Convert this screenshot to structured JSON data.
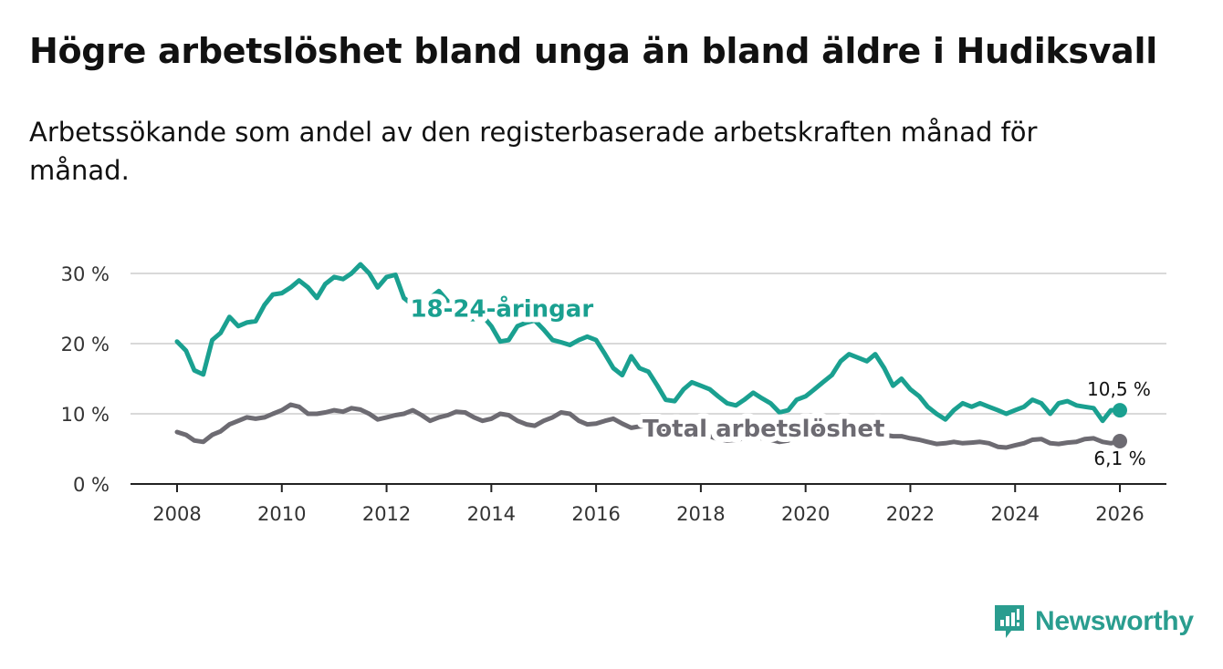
{
  "title": "Högre arbetslöshet bland unga än bland äldre i Hudiksvall",
  "subtitle": "Arbetssökande som andel av den registerbaserade arbetskraften månad för månad.",
  "brand": "Newsworthy",
  "colors": {
    "youth": "#1aa090",
    "total": "#6d6b72",
    "grid": "#d9d9d9",
    "axis": "#222222",
    "brand": "#2a9d8f"
  },
  "chart_data": {
    "type": "line",
    "title": "Högre arbetslöshet bland unga än bland äldre i Hudiksvall",
    "subtitle": "Arbetssökande som andel av den registerbaserade arbetskraften månad för månad.",
    "xlabel": "",
    "ylabel": "",
    "xlim": [
      2007.75,
      2026.9
    ],
    "ylim": [
      0,
      30
    ],
    "grid": true,
    "x_ticks": [
      2008,
      2010,
      2012,
      2014,
      2016,
      2018,
      2020,
      2022,
      2024,
      2026
    ],
    "x_tick_labels": [
      "2008",
      "2010",
      "2012",
      "2014",
      "2016",
      "2018",
      "2020",
      "2022",
      "2024",
      "2026"
    ],
    "y_ticks": [
      0,
      10,
      20,
      30
    ],
    "y_tick_labels": [
      "0 %",
      "10 %",
      "20 %",
      "30 %"
    ],
    "series": [
      {
        "name": "18-24-åringar",
        "label": "18-24-åringar",
        "end_label": "10,5 %",
        "color": "#1aa090",
        "points": [
          [
            2008.0,
            20.3
          ],
          [
            2008.17,
            19.0
          ],
          [
            2008.33,
            16.2
          ],
          [
            2008.5,
            15.6
          ],
          [
            2008.67,
            20.5
          ],
          [
            2008.83,
            21.5
          ],
          [
            2009.0,
            23.8
          ],
          [
            2009.17,
            22.5
          ],
          [
            2009.33,
            23.0
          ],
          [
            2009.5,
            23.2
          ],
          [
            2009.67,
            25.5
          ],
          [
            2009.83,
            27.0
          ],
          [
            2010.0,
            27.2
          ],
          [
            2010.17,
            28.0
          ],
          [
            2010.33,
            29.0
          ],
          [
            2010.5,
            28.0
          ],
          [
            2010.67,
            26.5
          ],
          [
            2010.83,
            28.5
          ],
          [
            2011.0,
            29.5
          ],
          [
            2011.17,
            29.2
          ],
          [
            2011.33,
            30.0
          ],
          [
            2011.5,
            31.3
          ],
          [
            2011.67,
            30.0
          ],
          [
            2011.83,
            28.0
          ],
          [
            2012.0,
            29.5
          ],
          [
            2012.17,
            29.8
          ],
          [
            2012.33,
            26.5
          ],
          [
            2012.5,
            25.5
          ],
          [
            2012.67,
            25.0
          ],
          [
            2012.83,
            26.5
          ],
          [
            2013.0,
            27.5
          ],
          [
            2013.17,
            26.0
          ],
          [
            2013.33,
            24.5
          ],
          [
            2013.5,
            23.5
          ],
          [
            2013.67,
            23.5
          ],
          [
            2013.83,
            24.0
          ],
          [
            2014.0,
            22.5
          ],
          [
            2014.17,
            20.3
          ],
          [
            2014.33,
            20.5
          ],
          [
            2014.5,
            22.5
          ],
          [
            2014.67,
            23.0
          ],
          [
            2014.83,
            23.3
          ],
          [
            2015.0,
            22.0
          ],
          [
            2015.17,
            20.5
          ],
          [
            2015.33,
            20.2
          ],
          [
            2015.5,
            19.8
          ],
          [
            2015.67,
            20.5
          ],
          [
            2015.83,
            21.0
          ],
          [
            2016.0,
            20.5
          ],
          [
            2016.17,
            18.5
          ],
          [
            2016.33,
            16.5
          ],
          [
            2016.5,
            15.5
          ],
          [
            2016.67,
            18.2
          ],
          [
            2016.83,
            16.5
          ],
          [
            2017.0,
            16.0
          ],
          [
            2017.17,
            14.0
          ],
          [
            2017.33,
            12.0
          ],
          [
            2017.5,
            11.8
          ],
          [
            2017.67,
            13.5
          ],
          [
            2017.83,
            14.5
          ],
          [
            2018.0,
            14.0
          ],
          [
            2018.17,
            13.5
          ],
          [
            2018.33,
            12.5
          ],
          [
            2018.5,
            11.5
          ],
          [
            2018.67,
            11.2
          ],
          [
            2018.83,
            12.0
          ],
          [
            2019.0,
            13.0
          ],
          [
            2019.17,
            12.2
          ],
          [
            2019.33,
            11.5
          ],
          [
            2019.5,
            10.2
          ],
          [
            2019.67,
            10.5
          ],
          [
            2019.83,
            12.0
          ],
          [
            2020.0,
            12.5
          ],
          [
            2020.17,
            13.5
          ],
          [
            2020.33,
            14.5
          ],
          [
            2020.5,
            15.5
          ],
          [
            2020.67,
            17.5
          ],
          [
            2020.83,
            18.5
          ],
          [
            2021.0,
            18.0
          ],
          [
            2021.17,
            17.5
          ],
          [
            2021.33,
            18.5
          ],
          [
            2021.5,
            16.5
          ],
          [
            2021.67,
            14.0
          ],
          [
            2021.83,
            15.0
          ],
          [
            2022.0,
            13.5
          ],
          [
            2022.17,
            12.5
          ],
          [
            2022.33,
            11.0
          ],
          [
            2022.5,
            10.0
          ],
          [
            2022.67,
            9.2
          ],
          [
            2022.83,
            10.5
          ],
          [
            2023.0,
            11.5
          ],
          [
            2023.17,
            11.0
          ],
          [
            2023.33,
            11.5
          ],
          [
            2023.5,
            11.0
          ],
          [
            2023.67,
            10.5
          ],
          [
            2023.83,
            10.0
          ],
          [
            2024.0,
            10.5
          ],
          [
            2024.17,
            11.0
          ],
          [
            2024.33,
            12.0
          ],
          [
            2024.5,
            11.5
          ],
          [
            2024.67,
            10.0
          ],
          [
            2024.83,
            11.5
          ],
          [
            2025.0,
            11.8
          ],
          [
            2025.17,
            11.2
          ],
          [
            2025.33,
            11.0
          ],
          [
            2025.5,
            10.8
          ],
          [
            2025.67,
            9.0
          ],
          [
            2025.83,
            10.5
          ],
          [
            2026.0,
            10.5
          ]
        ]
      },
      {
        "name": "Total arbetslöshet",
        "label": "Total arbetslöshet",
        "end_label": "6,1 %",
        "color": "#6d6b72",
        "points": [
          [
            2008.0,
            7.4
          ],
          [
            2008.17,
            7.0
          ],
          [
            2008.33,
            6.2
          ],
          [
            2008.5,
            6.0
          ],
          [
            2008.67,
            7.0
          ],
          [
            2008.83,
            7.5
          ],
          [
            2009.0,
            8.5
          ],
          [
            2009.17,
            9.0
          ],
          [
            2009.33,
            9.5
          ],
          [
            2009.5,
            9.3
          ],
          [
            2009.67,
            9.5
          ],
          [
            2009.83,
            10.0
          ],
          [
            2010.0,
            10.5
          ],
          [
            2010.17,
            11.3
          ],
          [
            2010.33,
            11.0
          ],
          [
            2010.5,
            10.0
          ],
          [
            2010.67,
            10.0
          ],
          [
            2010.83,
            10.2
          ],
          [
            2011.0,
            10.5
          ],
          [
            2011.17,
            10.3
          ],
          [
            2011.33,
            10.8
          ],
          [
            2011.5,
            10.6
          ],
          [
            2011.67,
            10.0
          ],
          [
            2011.83,
            9.2
          ],
          [
            2012.0,
            9.5
          ],
          [
            2012.17,
            9.8
          ],
          [
            2012.33,
            10.0
          ],
          [
            2012.5,
            10.5
          ],
          [
            2012.67,
            9.8
          ],
          [
            2012.83,
            9.0
          ],
          [
            2013.0,
            9.5
          ],
          [
            2013.17,
            9.8
          ],
          [
            2013.33,
            10.3
          ],
          [
            2013.5,
            10.2
          ],
          [
            2013.67,
            9.5
          ],
          [
            2013.83,
            9.0
          ],
          [
            2014.0,
            9.3
          ],
          [
            2014.17,
            10.0
          ],
          [
            2014.33,
            9.8
          ],
          [
            2014.5,
            9.0
          ],
          [
            2014.67,
            8.5
          ],
          [
            2014.83,
            8.3
          ],
          [
            2015.0,
            9.0
          ],
          [
            2015.17,
            9.5
          ],
          [
            2015.33,
            10.2
          ],
          [
            2015.5,
            10.0
          ],
          [
            2015.67,
            9.0
          ],
          [
            2015.83,
            8.5
          ],
          [
            2016.0,
            8.6
          ],
          [
            2016.17,
            9.0
          ],
          [
            2016.33,
            9.3
          ],
          [
            2016.5,
            8.6
          ],
          [
            2016.67,
            8.0
          ],
          [
            2016.83,
            8.2
          ],
          [
            2017.0,
            8.3
          ],
          [
            2017.17,
            8.0
          ],
          [
            2017.33,
            7.5
          ],
          [
            2017.5,
            7.0
          ],
          [
            2017.67,
            7.2
          ],
          [
            2017.83,
            6.9
          ],
          [
            2018.0,
            7.0
          ],
          [
            2018.17,
            6.8
          ],
          [
            2018.33,
            6.4
          ],
          [
            2018.5,
            6.2
          ],
          [
            2018.67,
            6.3
          ],
          [
            2018.83,
            6.5
          ],
          [
            2019.0,
            6.8
          ],
          [
            2019.17,
            6.5
          ],
          [
            2019.33,
            6.3
          ],
          [
            2019.5,
            6.0
          ],
          [
            2019.67,
            6.2
          ],
          [
            2019.83,
            6.8
          ],
          [
            2020.0,
            7.2
          ],
          [
            2020.17,
            7.5
          ],
          [
            2020.33,
            7.8
          ],
          [
            2020.5,
            8.0
          ],
          [
            2020.67,
            8.2
          ],
          [
            2020.83,
            8.0
          ],
          [
            2021.0,
            7.8
          ],
          [
            2021.17,
            7.5
          ],
          [
            2021.33,
            7.5
          ],
          [
            2021.5,
            7.0
          ],
          [
            2021.67,
            6.8
          ],
          [
            2021.83,
            6.8
          ],
          [
            2022.0,
            6.5
          ],
          [
            2022.17,
            6.3
          ],
          [
            2022.33,
            6.0
          ],
          [
            2022.5,
            5.7
          ],
          [
            2022.67,
            5.8
          ],
          [
            2022.83,
            6.0
          ],
          [
            2023.0,
            5.8
          ],
          [
            2023.17,
            5.9
          ],
          [
            2023.33,
            6.0
          ],
          [
            2023.5,
            5.8
          ],
          [
            2023.67,
            5.3
          ],
          [
            2023.83,
            5.2
          ],
          [
            2024.0,
            5.5
          ],
          [
            2024.17,
            5.8
          ],
          [
            2024.33,
            6.3
          ],
          [
            2024.5,
            6.4
          ],
          [
            2024.67,
            5.8
          ],
          [
            2024.83,
            5.7
          ],
          [
            2025.0,
            5.9
          ],
          [
            2025.17,
            6.0
          ],
          [
            2025.33,
            6.4
          ],
          [
            2025.5,
            6.5
          ],
          [
            2025.67,
            6.0
          ],
          [
            2025.83,
            5.8
          ],
          [
            2026.0,
            6.1
          ]
        ]
      }
    ],
    "annotations": [
      {
        "text": "18-24-åringar",
        "x": 2014.2,
        "y": 25.0,
        "series": 0
      },
      {
        "text": "Total arbetslöshet",
        "x": 2019.2,
        "y": 7.9,
        "series": 1
      }
    ]
  }
}
